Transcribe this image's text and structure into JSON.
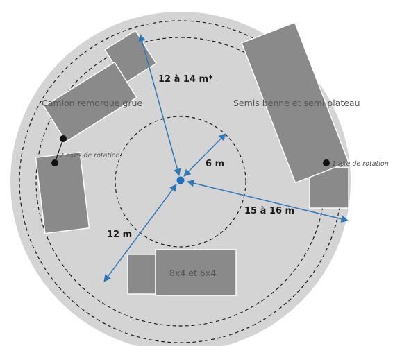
{
  "colors": {
    "disc": "#d4d4d4",
    "vehicle": "#8a8a8a",
    "arrow": "#2f78b8",
    "center_dot": "#1f6fc0",
    "rings": "#1a1a1a"
  },
  "labels": {
    "crane_truck": "Camion remorque grue",
    "semis": "Semis benne et semi plateau",
    "two_axes": "2 axes de rotation",
    "one_axe": "1 axe de rotation",
    "small_trucks": "8x4 et 6x4"
  },
  "dimensions": {
    "r_6": "6 m",
    "r_12_14": "12 à 14 m*",
    "r_12": "12 m",
    "r_15_16": "15 à 16 m"
  }
}
